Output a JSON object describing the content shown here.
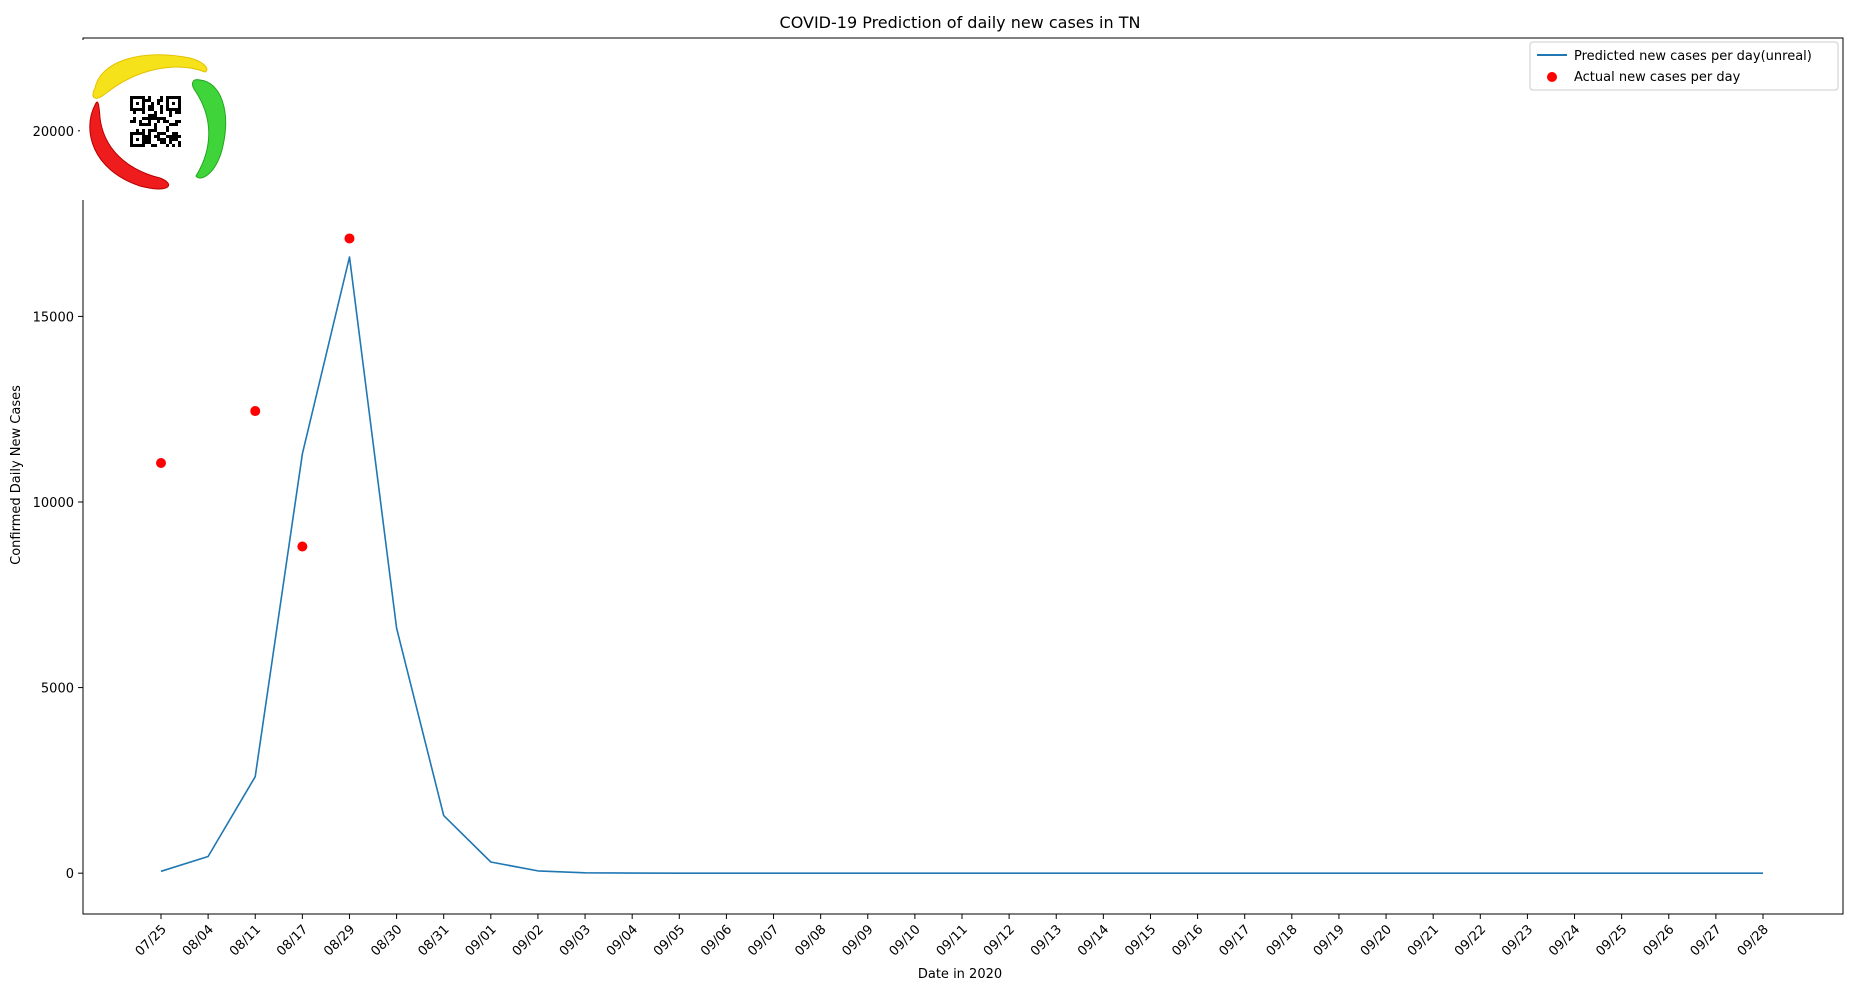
{
  "chart_data": {
    "type": "line",
    "title": "COVID-19 Prediction of daily new cases in TN",
    "xlabel": "Date in 2020",
    "ylabel": "Confirmed Daily New Cases",
    "categories": [
      "07/25",
      "08/04",
      "08/11",
      "08/17",
      "08/29",
      "08/30",
      "08/31",
      "09/01",
      "09/02",
      "09/03",
      "09/04",
      "09/05",
      "09/06",
      "09/07",
      "09/08",
      "09/09",
      "09/10",
      "09/11",
      "09/12",
      "09/13",
      "09/14",
      "09/15",
      "09/16",
      "09/17",
      "09/18",
      "09/19",
      "09/20",
      "09/21",
      "09/22",
      "09/23",
      "09/24",
      "09/25",
      "09/26",
      "09/27",
      "09/28"
    ],
    "ylim": [
      -1100,
      22500
    ],
    "yticks": [
      0,
      5000,
      10000,
      15000,
      20000
    ],
    "series": [
      {
        "name": "Predicted new cases per day(unreal)",
        "kind": "line",
        "color": "#1f77b4",
        "values": [
          50,
          450,
          2600,
          11300,
          16600,
          6600,
          1550,
          300,
          60,
          10,
          2,
          0,
          0,
          0,
          0,
          0,
          0,
          0,
          0,
          0,
          0,
          0,
          0,
          0,
          0,
          0,
          0,
          0,
          0,
          0,
          0,
          0,
          0,
          0,
          0
        ]
      },
      {
        "name": "Actual new cases per day",
        "kind": "scatter",
        "color": "#ff0000",
        "points": [
          {
            "x": "07/25",
            "y": 11050
          },
          {
            "x": "08/11",
            "y": 12450
          },
          {
            "x": "08/17",
            "y": 8800
          },
          {
            "x": "08/29",
            "y": 17100
          }
        ]
      }
    ],
    "legend": "top-right",
    "grid": false
  }
}
